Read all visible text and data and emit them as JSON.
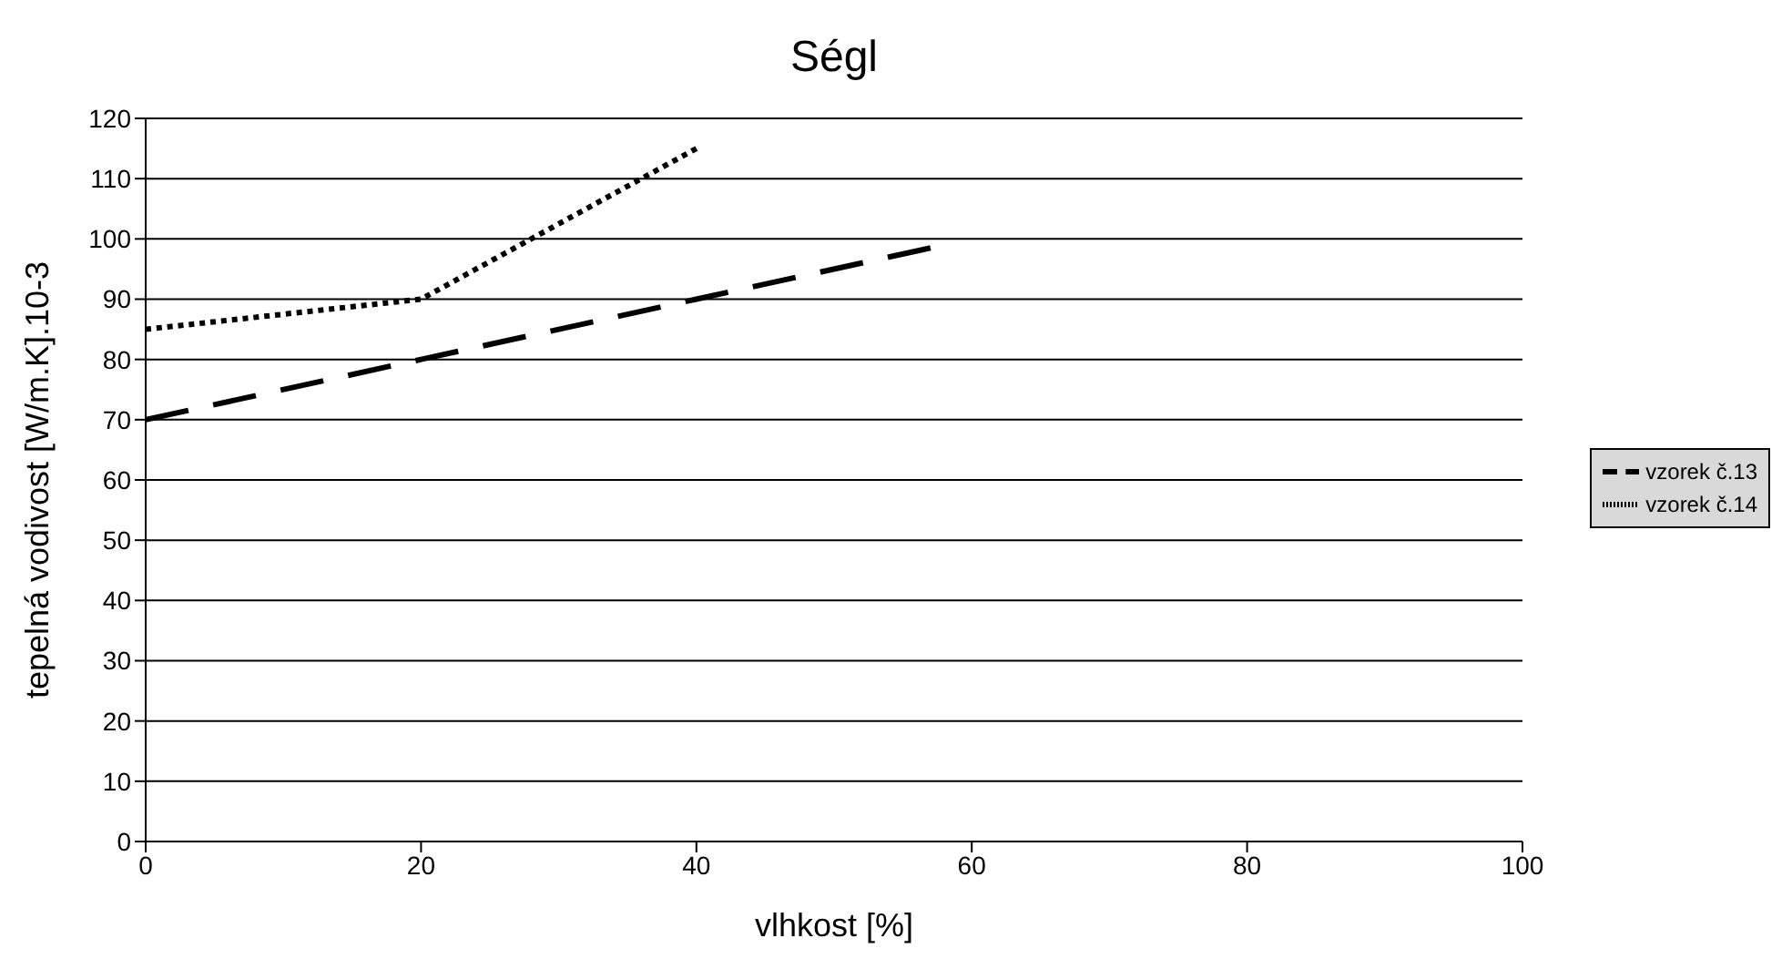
{
  "chart_data": {
    "type": "line",
    "title": "Ségl",
    "xlabel": "vlhkost [%]",
    "ylabel": "tepelná vodivost [W/m.K].10-3",
    "xlim": [
      0,
      100
    ],
    "xticks": [
      0,
      20,
      40,
      60,
      80,
      100
    ],
    "ylim": [
      0,
      120
    ],
    "yticks": [
      0,
      10,
      20,
      30,
      40,
      50,
      60,
      70,
      80,
      90,
      100,
      110,
      120
    ],
    "grid": "y",
    "legend": "right",
    "marker": "none",
    "series": [
      {
        "name": "vzorek č.13",
        "color": "#000000",
        "line_style": "dashed",
        "x": [
          0,
          20,
          40,
          57
        ],
        "values": [
          70,
          80,
          90,
          98.5
        ]
      },
      {
        "name": "vzorek č.14",
        "color": "#000000",
        "line_style": "dotted",
        "x": [
          0,
          20,
          40
        ],
        "values": [
          85,
          90,
          115
        ]
      }
    ]
  }
}
